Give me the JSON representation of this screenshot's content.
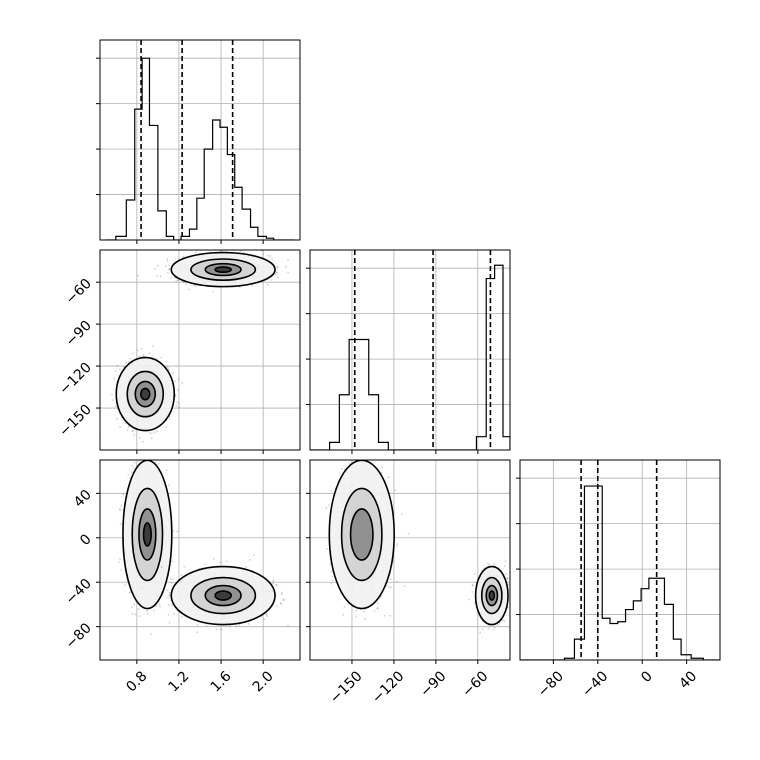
{
  "chart_data": {
    "type": "corner",
    "grid": true,
    "panels": [
      {
        "id": "hist-x",
        "type": "histogram",
        "row": 0,
        "col": 0,
        "xlim": [
          0.45,
          2.35
        ],
        "ylim": [
          0,
          1.1
        ],
        "bin_edges": [
          0.5,
          0.6,
          0.7,
          0.78,
          0.85,
          0.92,
          1.0,
          1.08,
          1.15,
          1.22,
          1.3,
          1.37,
          1.44,
          1.52,
          1.59,
          1.66,
          1.73,
          1.8,
          1.88,
          1.95,
          2.03,
          2.1,
          2.2,
          2.3
        ],
        "counts": [
          0.0,
          0.02,
          0.22,
          0.72,
          1.0,
          0.63,
          0.16,
          0.02,
          0.0,
          0.02,
          0.06,
          0.23,
          0.5,
          0.66,
          0.62,
          0.47,
          0.29,
          0.17,
          0.07,
          0.02,
          0.01,
          0.0,
          0.0
        ],
        "quantile_lines": [
          0.84,
          1.23,
          1.71
        ]
      },
      {
        "id": "hist-y",
        "type": "histogram",
        "row": 1,
        "col": 1,
        "xlim": [
          -180,
          -37
        ],
        "ylim": [
          0,
          1.05
        ],
        "bin_edges": [
          -180,
          -173,
          -166,
          -159,
          -152,
          -145,
          -138,
          -131,
          -124,
          -117,
          -110,
          -103,
          -96,
          -89,
          -82,
          -75,
          -68,
          -61,
          -54,
          -48,
          -42,
          -37
        ],
        "counts": [
          0.0,
          0.0,
          0.04,
          0.29,
          0.58,
          0.58,
          0.29,
          0.04,
          0.0,
          0.0,
          0.0,
          0.0,
          0.0,
          0.0,
          0.0,
          0.0,
          0.0,
          0.07,
          0.9,
          0.97,
          0.07
        ],
        "quantile_lines": [
          -148,
          -92,
          -51
        ]
      },
      {
        "id": "hist-z",
        "type": "histogram",
        "row": 2,
        "col": 2,
        "xlim": [
          -110,
          70
        ],
        "ylim": [
          0,
          1.15
        ],
        "bin_edges": [
          -110,
          -100,
          -90,
          -80,
          -70,
          -61,
          -52,
          -44,
          -36,
          -29,
          -22,
          -15,
          -8,
          -1,
          6,
          13,
          20,
          28,
          35,
          44,
          55,
          70
        ],
        "counts": [
          0.0,
          0.0,
          0.0,
          0.0,
          0.01,
          0.12,
          1.0,
          1.0,
          0.24,
          0.21,
          0.22,
          0.29,
          0.34,
          0.41,
          0.47,
          0.47,
          0.32,
          0.12,
          0.03,
          0.01,
          0.0
        ],
        "quantile_lines": [
          -55,
          -40,
          13
        ]
      },
      {
        "id": "scatter-xy",
        "type": "scatter",
        "row": 1,
        "col": 0,
        "xlim": [
          0.45,
          2.35
        ],
        "ylim": [
          -180,
          -37
        ],
        "clusters": [
          {
            "cx": 0.88,
            "cy": -140,
            "sx": 0.095,
            "sy": 9,
            "n": 1500,
            "contours": [
              2.9,
              1.8,
              1.0,
              0.45
            ]
          },
          {
            "cx": 1.62,
            "cy": -51,
            "sx": 0.17,
            "sy": 4.2,
            "n": 1500,
            "contours": [
              2.9,
              1.8,
              1.0,
              0.45
            ]
          }
        ]
      },
      {
        "id": "scatter-xz",
        "type": "scatter",
        "row": 2,
        "col": 0,
        "xlim": [
          0.45,
          2.35
        ],
        "ylim": [
          -110,
          70
        ],
        "clusters": [
          {
            "cx": 0.9,
            "cy": 3,
            "sx": 0.08,
            "sy": 23,
            "n": 1500,
            "contours": [
              2.9,
              1.8,
              1.0,
              0.45
            ]
          },
          {
            "cx": 1.62,
            "cy": -52,
            "sx": 0.17,
            "sy": 9,
            "n": 1500,
            "contours": [
              2.9,
              1.8,
              1.0,
              0.45
            ]
          }
        ]
      },
      {
        "id": "scatter-yz",
        "type": "scatter",
        "row": 2,
        "col": 1,
        "xlim": [
          -180,
          -37
        ],
        "ylim": [
          -110,
          70
        ],
        "clusters": [
          {
            "cx": -143,
            "cy": 3,
            "sx": 8,
            "sy": 23,
            "n": 1500,
            "contours": [
              2.9,
              1.8,
              1.0
            ]
          },
          {
            "cx": -50,
            "cy": -52,
            "sx": 4,
            "sy": 9,
            "n": 1000,
            "contours": [
              2.9,
              1.8,
              1.0,
              0.45
            ]
          }
        ]
      }
    ],
    "axes": {
      "x_bottom_col0": {
        "ticks": [
          0.8,
          1.2,
          1.6,
          2.0
        ],
        "labels": [
          "0.8",
          "1.2",
          "1.6",
          "2.0"
        ]
      },
      "x_bottom_col1": {
        "ticks": [
          -150,
          -120,
          -90,
          -60
        ],
        "labels": [
          "−150",
          "−120",
          "−90",
          "−60"
        ]
      },
      "x_bottom_col2": {
        "ticks": [
          -80,
          -40,
          0,
          40
        ],
        "labels": [
          "−80",
          "−40",
          "0",
          "40"
        ]
      },
      "y_left_row1": {
        "ticks": [
          -150,
          -120,
          -90,
          -60
        ],
        "labels": [
          "−150",
          "−120",
          "−90",
          "−60"
        ]
      },
      "y_left_row2": {
        "ticks": [
          -80,
          -40,
          0,
          40
        ],
        "labels": [
          "−80",
          "−40",
          "0",
          "40"
        ]
      }
    }
  }
}
